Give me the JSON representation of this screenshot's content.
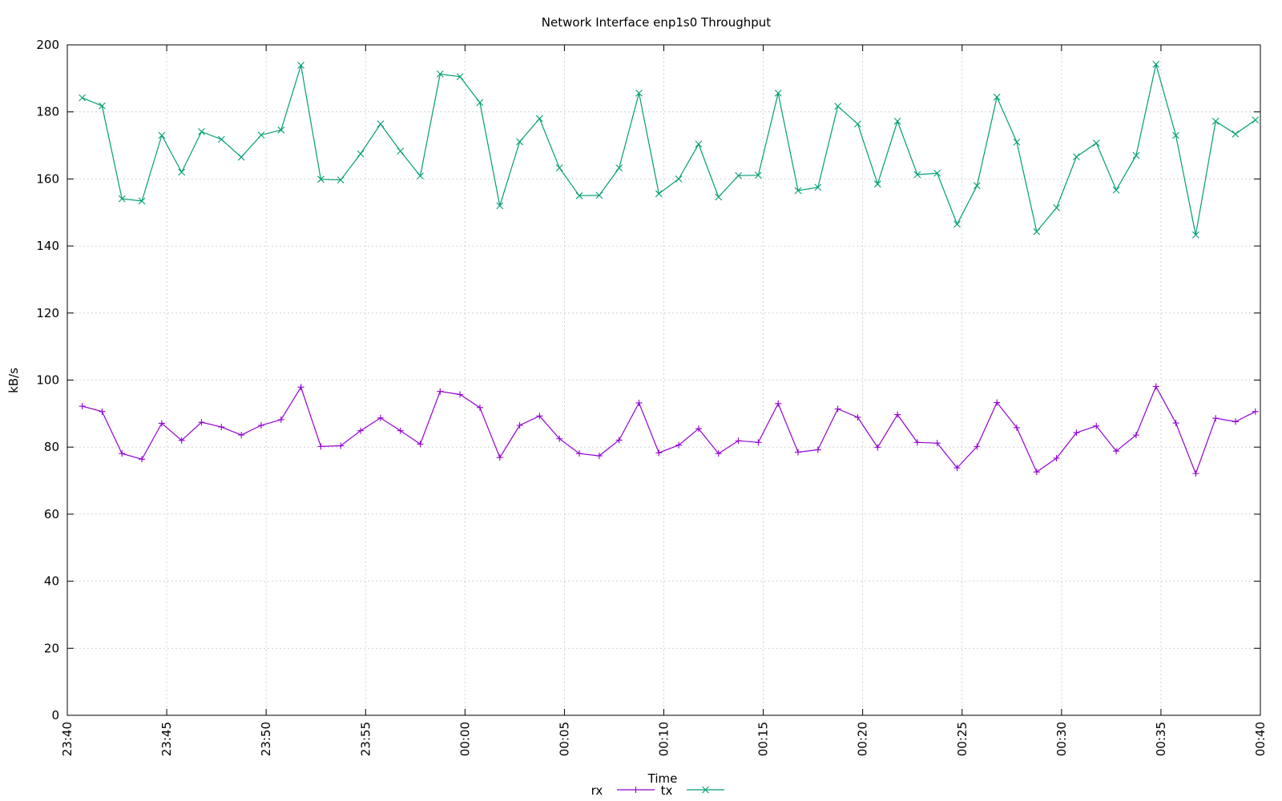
{
  "chart_data": {
    "type": "line",
    "title": "Network Interface enp1s0 Throughput",
    "xlabel": "Time",
    "ylabel": "kB/s",
    "ylim": [
      0,
      200
    ],
    "y_ticks": [
      0,
      20,
      40,
      60,
      80,
      100,
      120,
      140,
      160,
      180,
      200
    ],
    "x_range": [
      "23:40",
      "00:40"
    ],
    "x_tick_labels": [
      "23:40",
      "23:45",
      "23:50",
      "23:55",
      "00:00",
      "00:05",
      "00:10",
      "00:15",
      "00:20",
      "00:25",
      "00:30",
      "00:35",
      "00:40"
    ],
    "x": [
      "23:40:45",
      "23:41:45",
      "23:42:45",
      "23:43:45",
      "23:44:45",
      "23:45:45",
      "23:46:45",
      "23:47:45",
      "23:48:45",
      "23:49:45",
      "23:50:45",
      "23:51:45",
      "23:52:45",
      "23:53:45",
      "23:54:45",
      "23:55:45",
      "23:56:45",
      "23:57:45",
      "23:58:45",
      "23:59:45",
      "00:00:45",
      "00:01:45",
      "00:02:45",
      "00:03:45",
      "00:04:45",
      "00:05:45",
      "00:06:45",
      "00:07:45",
      "00:08:45",
      "00:09:45",
      "00:10:45",
      "00:11:45",
      "00:12:45",
      "00:13:45",
      "00:14:45",
      "00:15:45",
      "00:16:45",
      "00:17:45",
      "00:18:45",
      "00:19:45",
      "00:20:45",
      "00:21:45",
      "00:22:45",
      "00:23:45",
      "00:24:45",
      "00:25:45",
      "00:26:45",
      "00:27:45",
      "00:28:45",
      "00:29:45",
      "00:30:45",
      "00:31:45",
      "00:32:45",
      "00:33:45",
      "00:34:45",
      "00:35:45",
      "00:36:45",
      "00:37:45",
      "00:38:45",
      "00:39:45"
    ],
    "grid": true,
    "legend_position": "bottom-center",
    "series": [
      {
        "name": "rx",
        "color": "#9400d3",
        "marker": "plus",
        "values": [
          92.2,
          90.6,
          78.1,
          76.4,
          87.1,
          82.0,
          87.4,
          86.0,
          83.6,
          86.5,
          88.2,
          97.9,
          80.2,
          80.4,
          84.9,
          88.7,
          84.9,
          80.9,
          96.6,
          95.7,
          91.8,
          76.9,
          86.5,
          89.3,
          82.5,
          78.1,
          77.4,
          82.1,
          93.2,
          78.3,
          80.6,
          85.5,
          78.1,
          81.9,
          81.4,
          93.0,
          78.5,
          79.2,
          91.4,
          88.9,
          79.9,
          89.7,
          81.4,
          81.2,
          73.8,
          80.2,
          93.3,
          85.8,
          72.6,
          76.7,
          84.3,
          86.3,
          78.8,
          83.6,
          98.1,
          87.2,
          72.1,
          88.6,
          87.6,
          90.6
        ]
      },
      {
        "name": "tx",
        "color": "#009e73",
        "marker": "cross",
        "values": [
          184.2,
          181.8,
          154.1,
          153.4,
          173.0,
          162.0,
          174.1,
          171.8,
          166.5,
          173.1,
          174.6,
          193.9,
          159.9,
          159.7,
          167.5,
          176.4,
          168.3,
          160.9,
          191.3,
          190.5,
          182.8,
          152.0,
          171.1,
          178.0,
          163.3,
          155.0,
          155.1,
          163.3,
          185.6,
          155.6,
          160.0,
          170.4,
          154.6,
          161.0,
          161.1,
          185.6,
          156.5,
          157.5,
          181.7,
          176.4,
          158.5,
          177.2,
          161.3,
          161.7,
          146.5,
          158.0,
          184.4,
          171.0,
          144.3,
          151.4,
          166.6,
          170.7,
          156.7,
          167.0,
          194.2,
          173.0,
          143.3,
          177.2,
          173.4,
          177.6
        ]
      }
    ]
  }
}
